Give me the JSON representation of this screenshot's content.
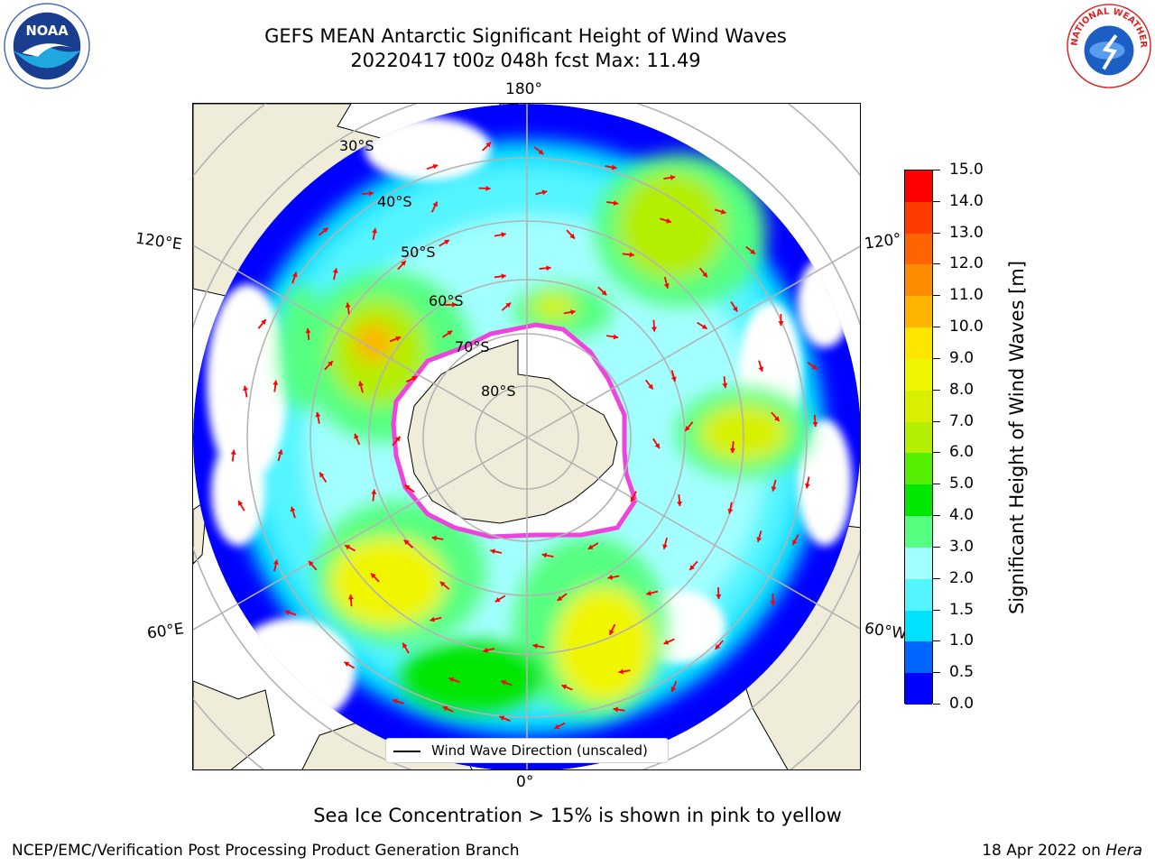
{
  "title": {
    "line1": "GEFS MEAN Antarctic Significant Height of Wind Waves",
    "line2": "20220417 t00z 048h fcst   Max: 11.49"
  },
  "longitude_labels": {
    "top": "180°",
    "bottom": "0°",
    "upper_left": "120°E",
    "lower_left": "60°E",
    "upper_right": "120°",
    "lower_right": "60°W"
  },
  "latitude_labels": [
    "30°S",
    "40°S",
    "50°S",
    "60°S",
    "70°S",
    "80°S"
  ],
  "colorbar": {
    "label": "Significant Height of Wind Waves [m]",
    "ticks": [
      "0.0",
      "0.5",
      "1.0",
      "1.5",
      "2.0",
      "3.0",
      "4.0",
      "5.0",
      "6.0",
      "7.0",
      "8.0",
      "9.0",
      "10.0",
      "11.0",
      "12.0",
      "13.0",
      "14.0",
      "15.0"
    ],
    "colors": [
      "#0000ff",
      "#0066ff",
      "#00e0ff",
      "#55f5ff",
      "#a3ffff",
      "#55ff80",
      "#00e600",
      "#55ee00",
      "#b4ee00",
      "#d8f000",
      "#f0f500",
      "#ffe600",
      "#ffb400",
      "#ff8c00",
      "#ff6400",
      "#ff3c00",
      "#ff0000"
    ]
  },
  "legend": {
    "label": "Wind Wave Direction (unscaled)"
  },
  "ice_note": "Sea Ice Concentration > 15% is shown in pink to yellow",
  "footer": {
    "left": "NCEP/EMC/Verification Post Processing Product Generation Branch",
    "right_prefix": "18 Apr 2022 on ",
    "right_host": "Hera"
  },
  "logos": {
    "noaa": "NOAA",
    "nws": "NATIONAL WEATHER SERVICE"
  },
  "map_colors": {
    "land": "#efedda",
    "ocean": "#ffffff",
    "grid": "#b3b3b3",
    "arrow": "#ff0000",
    "ice_edge": "#ee44dd"
  }
}
